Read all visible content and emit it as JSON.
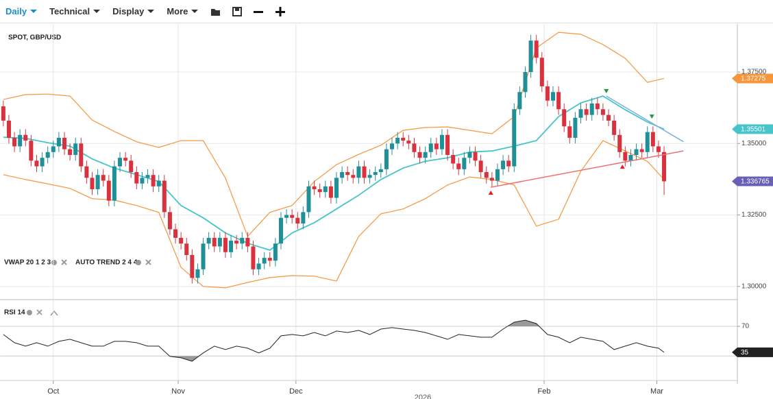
{
  "toolbar": {
    "items": [
      "Daily",
      "Technical",
      "Display",
      "More"
    ]
  },
  "chart_data": [
    {
      "type": "candlestick",
      "title": "SPOT, GBP/USD",
      "indicators": [
        "VWAP 20 1 2 3",
        "AUTO TREND 2 4 4"
      ],
      "up_color": "#1f8f98",
      "down_color": "#d8323e",
      "xlim": [
        -0.6,
        132.2
      ],
      "ylim": [
        1.2954,
        1.3918
      ],
      "yticks": [
        {
          "value": 1.3,
          "label": "1.30000"
        },
        {
          "value": 1.325,
          "label": "1.32500"
        },
        {
          "value": 1.35,
          "label": "1.35000"
        },
        {
          "value": 1.375,
          "label": "1.37500"
        }
      ],
      "xticks": [
        {
          "value": 9,
          "label": "Oct"
        },
        {
          "value": 31.5,
          "label": "Nov"
        },
        {
          "value": 52.7,
          "label": "Dec"
        },
        {
          "value": 97.4,
          "label": "Feb"
        },
        {
          "value": 117.7,
          "label": "Mar"
        }
      ],
      "x_note": "2026",
      "grid": true,
      "open": [
        1.363,
        1.358,
        1.352,
        1.349,
        1.353,
        1.351,
        1.344,
        1.342,
        1.345,
        1.347,
        1.349,
        1.352,
        1.348,
        1.346,
        1.35,
        1.342,
        1.338,
        1.334,
        1.339,
        1.337,
        1.33,
        1.342,
        1.345,
        1.344,
        1.34,
        1.336,
        1.338,
        1.339,
        1.335,
        1.337,
        1.326,
        1.32,
        1.317,
        1.315,
        1.311,
        1.303,
        1.306,
        1.315,
        1.317,
        1.314,
        1.317,
        1.312,
        1.316,
        1.315,
        1.317,
        1.314,
        1.306,
        1.308,
        1.31,
        1.309,
        1.315,
        1.324,
        1.325,
        1.324,
        1.322,
        1.326,
        1.335,
        1.334,
        1.333,
        1.335,
        1.331,
        1.338,
        1.34,
        1.339,
        1.338,
        1.342,
        1.338,
        1.339,
        1.34,
        1.341,
        1.348,
        1.35,
        1.352,
        1.351,
        1.35,
        1.347,
        1.345,
        1.347,
        1.35,
        1.348,
        1.353,
        1.346,
        1.343,
        1.341,
        1.345,
        1.347,
        1.344,
        1.34,
        1.338,
        1.337,
        1.341,
        1.344,
        1.342,
        1.362,
        1.368,
        1.375,
        1.386,
        1.38,
        1.37,
        1.365,
        1.368,
        1.362,
        1.356,
        1.352,
        1.359,
        1.362,
        1.36,
        1.364,
        1.362,
        1.36,
        1.358,
        1.353,
        1.347,
        1.344,
        1.346,
        1.348,
        1.347,
        1.354,
        1.349,
        1.347
      ],
      "high": [
        1.365,
        1.36,
        1.354,
        1.355,
        1.355,
        1.353,
        1.346,
        1.347,
        1.349,
        1.351,
        1.354,
        1.354,
        1.35,
        1.352,
        1.352,
        1.344,
        1.34,
        1.341,
        1.341,
        1.339,
        1.344,
        1.347,
        1.347,
        1.346,
        1.342,
        1.34,
        1.341,
        1.341,
        1.339,
        1.339,
        1.328,
        1.322,
        1.319,
        1.317,
        1.313,
        1.308,
        1.317,
        1.319,
        1.319,
        1.319,
        1.319,
        1.318,
        1.318,
        1.319,
        1.319,
        1.316,
        1.31,
        1.312,
        1.312,
        1.317,
        1.326,
        1.327,
        1.327,
        1.326,
        1.328,
        1.337,
        1.337,
        1.336,
        1.337,
        1.337,
        1.34,
        1.342,
        1.342,
        1.341,
        1.344,
        1.344,
        1.341,
        1.342,
        1.343,
        1.35,
        1.352,
        1.354,
        1.354,
        1.353,
        1.352,
        1.349,
        1.349,
        1.352,
        1.352,
        1.355,
        1.355,
        1.348,
        1.345,
        1.347,
        1.349,
        1.349,
        1.346,
        1.342,
        1.34,
        1.343,
        1.346,
        1.346,
        1.364,
        1.37,
        1.377,
        1.388,
        1.388,
        1.382,
        1.372,
        1.37,
        1.37,
        1.364,
        1.358,
        1.361,
        1.364,
        1.364,
        1.366,
        1.366,
        1.364,
        1.362,
        1.36,
        1.355,
        1.349,
        1.348,
        1.35,
        1.35,
        1.356,
        1.356,
        1.351,
        1.349
      ],
      "low": [
        1.356,
        1.35,
        1.347,
        1.347,
        1.349,
        1.342,
        1.34,
        1.34,
        1.343,
        1.345,
        1.347,
        1.346,
        1.344,
        1.344,
        1.34,
        1.336,
        1.332,
        1.332,
        1.335,
        1.328,
        1.328,
        1.34,
        1.342,
        1.338,
        1.334,
        1.334,
        1.336,
        1.333,
        1.333,
        1.324,
        1.318,
        1.315,
        1.313,
        1.309,
        1.301,
        1.301,
        1.304,
        1.313,
        1.312,
        1.312,
        1.31,
        1.31,
        1.313,
        1.313,
        1.312,
        1.304,
        1.304,
        1.306,
        1.307,
        1.307,
        1.313,
        1.322,
        1.322,
        1.32,
        1.32,
        1.324,
        1.332,
        1.331,
        1.331,
        1.329,
        1.329,
        1.336,
        1.337,
        1.336,
        1.336,
        1.336,
        1.336,
        1.337,
        1.338,
        1.339,
        1.346,
        1.348,
        1.349,
        1.348,
        1.345,
        1.343,
        1.343,
        1.345,
        1.346,
        1.346,
        1.344,
        1.341,
        1.339,
        1.339,
        1.343,
        1.342,
        1.338,
        1.336,
        1.335,
        1.335,
        1.339,
        1.34,
        1.34,
        1.36,
        1.366,
        1.373,
        1.378,
        1.368,
        1.363,
        1.363,
        1.36,
        1.354,
        1.35,
        1.35,
        1.357,
        1.358,
        1.358,
        1.36,
        1.358,
        1.356,
        1.351,
        1.345,
        1.342,
        1.342,
        1.344,
        1.345,
        1.345,
        1.347,
        1.345,
        1.332
      ],
      "close": [
        1.358,
        1.352,
        1.349,
        1.353,
        1.351,
        1.344,
        1.342,
        1.345,
        1.347,
        1.349,
        1.352,
        1.348,
        1.346,
        1.35,
        1.342,
        1.338,
        1.334,
        1.339,
        1.337,
        1.33,
        1.342,
        1.345,
        1.344,
        1.34,
        1.336,
        1.338,
        1.339,
        1.335,
        1.337,
        1.326,
        1.32,
        1.317,
        1.315,
        1.311,
        1.303,
        1.306,
        1.315,
        1.317,
        1.314,
        1.317,
        1.312,
        1.316,
        1.315,
        1.317,
        1.314,
        1.306,
        1.308,
        1.31,
        1.309,
        1.315,
        1.324,
        1.325,
        1.324,
        1.322,
        1.326,
        1.335,
        1.334,
        1.333,
        1.335,
        1.331,
        1.338,
        1.34,
        1.339,
        1.338,
        1.342,
        1.338,
        1.339,
        1.34,
        1.341,
        1.348,
        1.35,
        1.352,
        1.351,
        1.35,
        1.347,
        1.345,
        1.347,
        1.35,
        1.348,
        1.353,
        1.346,
        1.343,
        1.341,
        1.345,
        1.347,
        1.344,
        1.34,
        1.338,
        1.337,
        1.341,
        1.344,
        1.342,
        1.362,
        1.368,
        1.375,
        1.386,
        1.38,
        1.37,
        1.365,
        1.368,
        1.362,
        1.356,
        1.352,
        1.359,
        1.362,
        1.36,
        1.364,
        1.362,
        1.36,
        1.358,
        1.353,
        1.347,
        1.344,
        1.346,
        1.348,
        1.347,
        1.354,
        1.349,
        1.347,
        1.336765
      ],
      "last_color": "#6a5fb5",
      "series": [
        {
          "color": "#f7953b",
          "x": [
            0,
            4,
            8,
            12,
            16,
            20,
            24,
            28,
            32,
            36,
            40,
            44,
            48,
            52,
            56,
            60,
            64,
            68,
            72,
            76,
            80,
            84,
            88,
            92,
            96,
            100,
            104,
            108,
            112,
            116,
            119
          ],
          "values": [
            1.3654,
            1.3671,
            1.3673,
            1.3666,
            1.3582,
            1.3542,
            1.3506,
            1.3486,
            1.351,
            1.351,
            1.3379,
            1.3175,
            1.3259,
            1.3283,
            1.3367,
            1.3426,
            1.3462,
            1.3494,
            1.3546,
            1.3556,
            1.3558,
            1.3546,
            1.3534,
            1.3594,
            1.3834,
            1.3889,
            1.3882,
            1.3846,
            1.3798,
            1.3714,
            1.37275
          ]
        },
        {
          "color": "#f7953b",
          "x": [
            0,
            4,
            8,
            12,
            16,
            20,
            24,
            28,
            32,
            36,
            40,
            44,
            48,
            52,
            56,
            60,
            64,
            68,
            72,
            76,
            80,
            84,
            88,
            92,
            96,
            100,
            104,
            108,
            112,
            116,
            119
          ],
          "values": [
            1.3391,
            1.3374,
            1.3359,
            1.3343,
            1.3307,
            1.3302,
            1.3283,
            1.3259,
            1.3067,
            1.3,
            1.2995,
            1.3014,
            1.3031,
            1.3038,
            1.3036,
            1.3019,
            1.3175,
            1.3254,
            1.3271,
            1.3307,
            1.3355,
            1.3383,
            1.3374,
            1.3355,
            1.3211,
            1.3235,
            1.3403,
            1.351,
            1.3474,
            1.3438,
            1.3374
          ]
        },
        {
          "color": "#45c4c9",
          "x": [
            0,
            4,
            8,
            12,
            16,
            20,
            24,
            28,
            32,
            36,
            40,
            44,
            48,
            52,
            56,
            60,
            64,
            68,
            72,
            76,
            80,
            84,
            88,
            92,
            96,
            100,
            104,
            108,
            112,
            116,
            119
          ],
          "values": [
            1.3522,
            1.3518,
            1.3503,
            1.3491,
            1.3446,
            1.3414,
            1.3391,
            1.3367,
            1.3283,
            1.324,
            1.3187,
            1.3151,
            1.3127,
            1.3187,
            1.3223,
            1.3271,
            1.3319,
            1.3374,
            1.3414,
            1.3438,
            1.345,
            1.347,
            1.3474,
            1.3491,
            1.351,
            1.3594,
            1.3642,
            1.3666,
            1.3618,
            1.3575,
            1.35501
          ]
        }
      ],
      "trend_lines": [
        {
          "color": "#f07070",
          "x": [
            87.8,
            122.5
          ],
          "y": [
            1.3347,
            1.3474
          ]
        },
        {
          "color": "#7fb0e0",
          "x": [
            108.6,
            122.5
          ],
          "y": [
            1.3666,
            1.3506
          ]
        }
      ],
      "signals": [
        {
          "x": 87.8,
          "y": 1.3328,
          "color": "#e02020",
          "dir": "up"
        },
        {
          "x": 111.5,
          "y": 1.3419,
          "color": "#e02020",
          "dir": "up"
        },
        {
          "x": 108.6,
          "y": 1.3683,
          "color": "#1a9a3a",
          "dir": "down"
        },
        {
          "x": 116.8,
          "y": 1.3594,
          "color": "#1a9a3a",
          "dir": "down"
        }
      ]
    },
    {
      "type": "line",
      "title": "RSI 14",
      "color": "#222222",
      "xlim": [
        -0.6,
        132.2
      ],
      "ylim": [
        -3,
        106
      ],
      "yticks": [
        70
      ],
      "levels": [
        30,
        70
      ],
      "x": [
        0,
        2,
        4,
        6,
        8,
        10,
        12,
        14,
        16,
        18,
        20,
        22,
        24,
        26,
        28,
        30,
        32,
        34,
        36,
        38,
        40,
        42,
        44,
        46,
        48,
        50,
        52,
        54,
        56,
        58,
        60,
        62,
        64,
        66,
        68,
        70,
        72,
        74,
        76,
        78,
        80,
        82,
        84,
        86,
        88,
        90,
        92,
        94,
        96,
        98,
        100,
        102,
        104,
        106,
        108,
        110,
        112,
        114,
        116,
        118,
        119
      ],
      "values": [
        59.0,
        47.9,
        43.3,
        47.9,
        43.3,
        49.7,
        52.5,
        47.9,
        43.3,
        43.3,
        49.7,
        49.7,
        47.9,
        43.3,
        43.3,
        29.5,
        27.6,
        23.0,
        34.1,
        43.3,
        38.7,
        43.3,
        40.5,
        34.1,
        40.5,
        57.1,
        59.0,
        57.1,
        61.7,
        57.1,
        63.6,
        61.7,
        64.5,
        59.0,
        66.3,
        68.2,
        66.3,
        64.5,
        61.7,
        57.1,
        52.5,
        59.0,
        57.1,
        55.3,
        55.3,
        66.3,
        75.5,
        78.3,
        73.7,
        59.0,
        55.3,
        47.9,
        55.3,
        52.5,
        49.7,
        38.7,
        43.3,
        47.9,
        43.3,
        40.5,
        35
      ]
    }
  ]
}
